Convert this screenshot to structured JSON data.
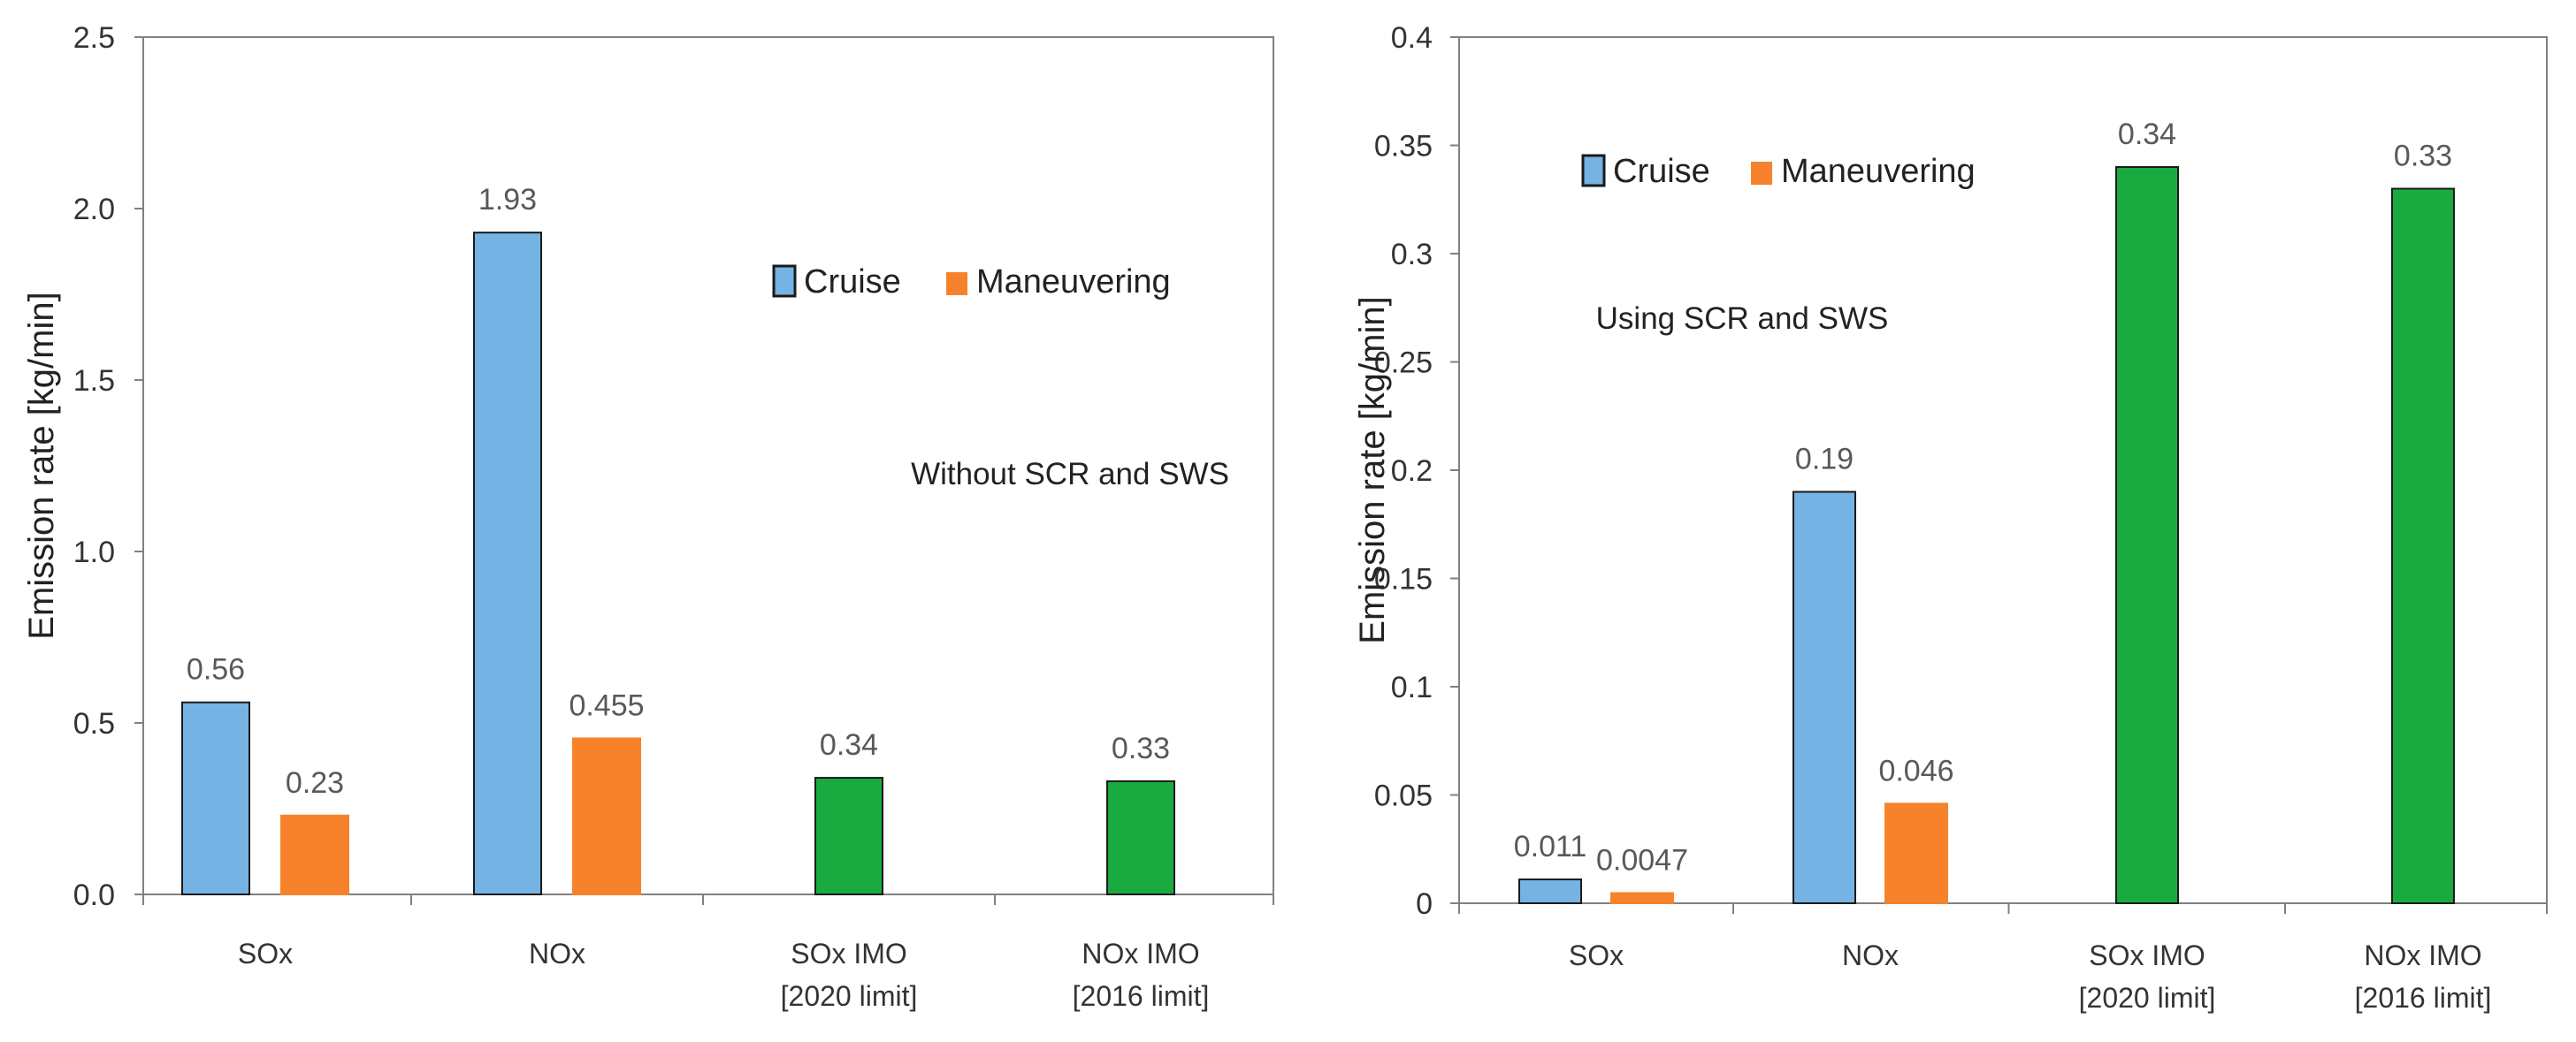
{
  "colors": {
    "cruise": "#74b3e3",
    "maneuvering": "#f6832b",
    "imo": "#1aab40",
    "axis": "#808080"
  },
  "chart_data": [
    {
      "type": "bar",
      "title": "",
      "annotation": "Without SCR and SWS",
      "ylabel": "Emission rate [kg/min]",
      "xlabel": "",
      "ylim": [
        0,
        2.5
      ],
      "yticks": [
        "0.0",
        "0.5",
        "1.0",
        "1.5",
        "2.0",
        "2.5"
      ],
      "ytick_values": [
        0,
        0.5,
        1.0,
        1.5,
        2.0,
        2.5
      ],
      "categories": [
        {
          "line1": "SOx",
          "line2": ""
        },
        {
          "line1": "NOx",
          "line2": ""
        },
        {
          "line1": "SOx IMO",
          "line2": "[2020 limit]"
        },
        {
          "line1": "NOx IMO",
          "line2": "[2016 limit]"
        }
      ],
      "legend": {
        "position": "upper-right",
        "entries": [
          "Cruise",
          "Maneuvering"
        ]
      },
      "bars": [
        {
          "category": 0,
          "series": "cruise",
          "value": 0.56,
          "label": "0.56"
        },
        {
          "category": 0,
          "series": "maneuvering",
          "value": 0.23,
          "label": "0.23"
        },
        {
          "category": 1,
          "series": "cruise",
          "value": 1.93,
          "label": "1.93"
        },
        {
          "category": 1,
          "series": "maneuvering",
          "value": 0.455,
          "label": "0.455"
        },
        {
          "category": 2,
          "series": "imo",
          "value": 0.34,
          "label": "0.34"
        },
        {
          "category": 3,
          "series": "imo",
          "value": 0.33,
          "label": "0.33"
        }
      ]
    },
    {
      "type": "bar",
      "title": "",
      "annotation": "Using SCR and SWS",
      "ylabel": "Emission rate [kg/min]",
      "xlabel": "",
      "ylim": [
        0,
        0.4
      ],
      "yticks": [
        "0",
        "0.05",
        "0.1",
        "0.15",
        "0.2",
        "0.25",
        "0.3",
        "0.35",
        "0.4"
      ],
      "ytick_values": [
        0,
        0.05,
        0.1,
        0.15,
        0.2,
        0.25,
        0.3,
        0.35,
        0.4
      ],
      "categories": [
        {
          "line1": "SOx",
          "line2": ""
        },
        {
          "line1": "NOx",
          "line2": ""
        },
        {
          "line1": "SOx IMO",
          "line2": "[2020 limit]"
        },
        {
          "line1": "NOx IMO",
          "line2": "[2016 limit]"
        }
      ],
      "legend": {
        "position": "upper-left",
        "entries": [
          "Cruise",
          "Maneuvering"
        ]
      },
      "bars": [
        {
          "category": 0,
          "series": "cruise",
          "value": 0.011,
          "label": "0.011"
        },
        {
          "category": 0,
          "series": "maneuvering",
          "value": 0.0047,
          "label": "0.0047"
        },
        {
          "category": 1,
          "series": "cruise",
          "value": 0.19,
          "label": "0.19"
        },
        {
          "category": 1,
          "series": "maneuvering",
          "value": 0.046,
          "label": "0.046"
        },
        {
          "category": 2,
          "series": "imo",
          "value": 0.34,
          "label": "0.34"
        },
        {
          "category": 3,
          "series": "imo",
          "value": 0.33,
          "label": "0.33"
        }
      ]
    }
  ]
}
